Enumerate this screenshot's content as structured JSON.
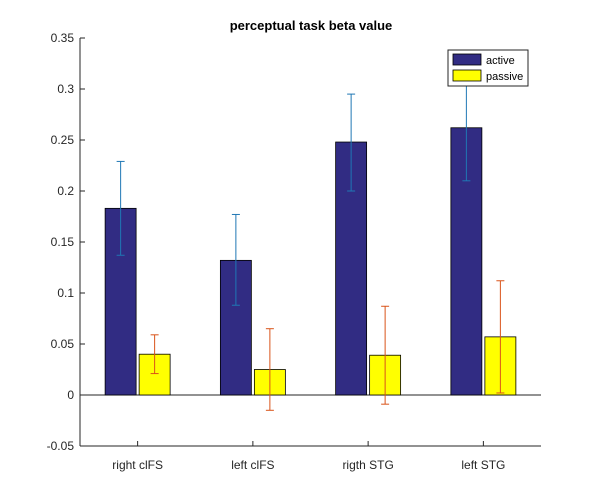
{
  "chart_data": {
    "type": "bar",
    "title": "perceptual task beta value",
    "xlabel": "",
    "ylabel": "",
    "categories": [
      "right clFS",
      "left clFS",
      "rigth STG",
      "left STG"
    ],
    "series": [
      {
        "name": "active",
        "color": "#312c83",
        "error_color": "#1f77b4",
        "values": [
          0.183,
          0.132,
          0.248,
          0.262
        ],
        "error_low": [
          0.137,
          0.088,
          0.2,
          0.21
        ],
        "error_high": [
          0.229,
          0.177,
          0.295,
          0.305
        ]
      },
      {
        "name": "passive",
        "color": "#ffff00",
        "error_color": "#d95319",
        "values": [
          0.04,
          0.025,
          0.039,
          0.057
        ],
        "error_low": [
          0.021,
          -0.015,
          -0.009,
          0.002
        ],
        "error_high": [
          0.059,
          0.065,
          0.087,
          0.112
        ]
      }
    ],
    "ylim": [
      -0.05,
      0.35
    ],
    "yticks": [
      "-0.05",
      "0",
      "0.05",
      "0.1",
      "0.15",
      "0.2",
      "0.25",
      "0.3",
      "0.35"
    ],
    "ytick_values": [
      -0.05,
      0,
      0.05,
      0.1,
      0.15,
      0.2,
      0.25,
      0.3,
      0.35
    ],
    "grid": false,
    "legend_position": "top-right"
  }
}
